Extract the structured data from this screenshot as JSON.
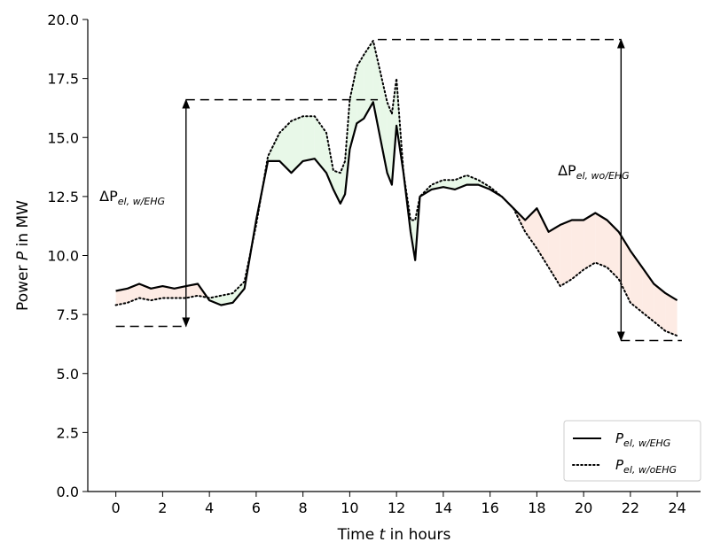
{
  "chart_data": {
    "type": "line",
    "xlabel_parts": [
      "Time ",
      "t",
      " in hours"
    ],
    "ylabel_parts": [
      "Power ",
      "P",
      " in MW"
    ],
    "xlim": [
      -1.2,
      25.0
    ],
    "ylim": [
      0,
      20
    ],
    "xticks": [
      0,
      2,
      4,
      6,
      8,
      10,
      12,
      14,
      16,
      18,
      20,
      22,
      24
    ],
    "xtick_labels": [
      "0",
      "2",
      "4",
      "6",
      "8",
      "10",
      "12",
      "14",
      "16",
      "18",
      "20",
      "22",
      "24"
    ],
    "yticks": [
      0,
      2.5,
      5,
      7.5,
      10,
      12.5,
      15,
      17.5,
      20
    ],
    "ytick_labels": [
      "0.0",
      "2.5",
      "5.0",
      "7.5",
      "10.0",
      "12.5",
      "15.0",
      "17.5",
      "20.0"
    ],
    "grid": false,
    "legend_position": "lower-right",
    "series": [
      {
        "name": "P_el,w/EHG",
        "name_parts": [
          "P",
          "el, w/EHG"
        ],
        "style": "solid",
        "color": "#000000",
        "x": [
          0,
          0.5,
          1,
          1.5,
          2,
          2.5,
          3,
          3.5,
          4,
          4.5,
          5,
          5.5,
          6,
          6.5,
          7,
          7.5,
          8,
          8.5,
          9,
          9.3,
          9.6,
          9.8,
          10,
          10.3,
          10.6,
          11,
          11.3,
          11.6,
          11.8,
          12,
          12.3,
          12.6,
          12.8,
          13,
          13.5,
          14,
          14.5,
          15,
          15.5,
          16,
          16.5,
          17,
          17.5,
          18,
          18.5,
          19,
          19.5,
          20,
          20.5,
          21,
          21.5,
          22,
          22.5,
          23,
          23.5,
          24
        ],
        "y": [
          8.5,
          8.6,
          8.8,
          8.6,
          8.7,
          8.6,
          8.7,
          8.8,
          8.1,
          7.9,
          8.0,
          8.6,
          11.5,
          14.0,
          14.0,
          13.5,
          14.0,
          14.1,
          13.5,
          12.8,
          12.2,
          12.6,
          14.5,
          15.6,
          15.8,
          16.5,
          15.0,
          13.5,
          13.0,
          15.5,
          13.5,
          11.0,
          9.8,
          12.5,
          12.8,
          12.9,
          12.8,
          13.0,
          13.0,
          12.8,
          12.5,
          12.0,
          11.5,
          12.0,
          11.0,
          11.3,
          11.5,
          11.5,
          11.8,
          11.5,
          11.0,
          10.2,
          9.5,
          8.8,
          8.4,
          8.1
        ]
      },
      {
        "name": "P_el,w/oEHG",
        "name_parts": [
          "P",
          "el, w/oEHG"
        ],
        "style": "dotted",
        "color": "#000000",
        "x": [
          0,
          0.5,
          1,
          1.5,
          2,
          2.5,
          3,
          3.5,
          4,
          4.5,
          5,
          5.5,
          6,
          6.5,
          7,
          7.5,
          8,
          8.5,
          9,
          9.3,
          9.6,
          9.8,
          10,
          10.3,
          10.6,
          11,
          11.3,
          11.6,
          11.8,
          12,
          12.3,
          12.6,
          12.8,
          13,
          13.5,
          14,
          14.5,
          15,
          15.5,
          16,
          16.5,
          17,
          17.5,
          18,
          18.5,
          19,
          19.5,
          20,
          20.5,
          21,
          21.5,
          22,
          22.5,
          23,
          23.5,
          24
        ],
        "y": [
          7.9,
          8.0,
          8.2,
          8.1,
          8.2,
          8.2,
          8.2,
          8.3,
          8.2,
          8.3,
          8.4,
          8.9,
          11.3,
          14.2,
          15.2,
          15.7,
          15.9,
          15.9,
          15.2,
          13.6,
          13.5,
          14.0,
          16.6,
          18.0,
          18.5,
          19.1,
          17.8,
          16.5,
          16.0,
          17.5,
          13.5,
          11.5,
          11.5,
          12.5,
          13.0,
          13.2,
          13.2,
          13.4,
          13.2,
          12.9,
          12.5,
          12.0,
          11.0,
          10.3,
          9.5,
          8.7,
          9.0,
          9.4,
          9.7,
          9.5,
          9.0,
          8.0,
          7.6,
          7.2,
          6.8,
          6.6
        ]
      }
    ],
    "annotations": [
      {
        "label_parts": [
          "ΔP",
          "el, w/EHG"
        ]
      },
      {
        "label_parts": [
          "ΔP",
          "el, wo/EHG"
        ]
      }
    ]
  }
}
